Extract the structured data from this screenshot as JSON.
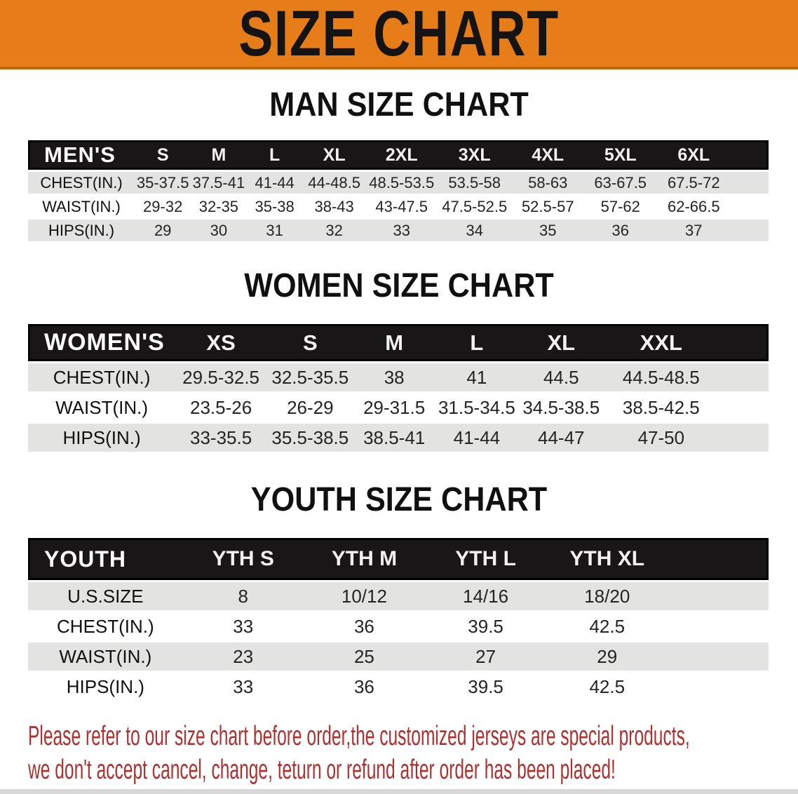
{
  "banner": {
    "title": "SIZE CHART"
  },
  "sections": [
    {
      "id": "men",
      "title": "MAN SIZE CHART",
      "header_label": "MEN'S",
      "columns": [
        "S",
        "M",
        "L",
        "XL",
        "2XL",
        "3XL",
        "4XL",
        "5XL",
        "6XL"
      ],
      "rows": [
        {
          "label": "CHEST(IN.)",
          "values": [
            "35-37.5",
            "37.5-41",
            "41-44",
            "44-48.5",
            "48.5-53.5",
            "53.5-58",
            "58-63",
            "63-67.5",
            "67.5-72"
          ]
        },
        {
          "label": "WAIST(IN.)",
          "values": [
            "29-32",
            "32-35",
            "35-38",
            "38-43",
            "43-47.5",
            "47.5-52.5",
            "52.5-57",
            "57-62",
            "62-66.5"
          ]
        },
        {
          "label": "HIPS(IN.)",
          "values": [
            "29",
            "30",
            "31",
            "32",
            "33",
            "34",
            "35",
            "36",
            "37"
          ]
        }
      ]
    },
    {
      "id": "women",
      "title": "WOMEN SIZE CHART",
      "header_label": "WOMEN'S",
      "columns": [
        "XS",
        "S",
        "M",
        "L",
        "XL",
        "XXL"
      ],
      "rows": [
        {
          "label": "CHEST(IN.)",
          "values": [
            "29.5-32.5",
            "32.5-35.5",
            "38",
            "41",
            "44.5",
            "44.5-48.5"
          ]
        },
        {
          "label": "WAIST(IN.)",
          "values": [
            "23.5-26",
            "26-29",
            "29-31.5",
            "31.5-34.5",
            "34.5-38.5",
            "38.5-42.5"
          ]
        },
        {
          "label": "HIPS(IN.)",
          "values": [
            "33-35.5",
            "35.5-38.5",
            "38.5-41",
            "41-44",
            "44-47",
            "47-50"
          ]
        }
      ]
    },
    {
      "id": "youth",
      "title": "YOUTH SIZE CHART",
      "header_label": "YOUTH",
      "columns": [
        "YTH S",
        "YTH M",
        "YTH L",
        "YTH XL"
      ],
      "rows": [
        {
          "label": "U.S.SIZE",
          "values": [
            "8",
            "10/12",
            "14/16",
            "18/20"
          ]
        },
        {
          "label": "CHEST(IN.)",
          "values": [
            "33",
            "36",
            "39.5",
            "42.5"
          ]
        },
        {
          "label": "WAIST(IN.)",
          "values": [
            "23",
            "25",
            "27",
            "29"
          ]
        },
        {
          "label": "HIPS(IN.)",
          "values": [
            "33",
            "36",
            "39.5",
            "42.5"
          ]
        }
      ]
    }
  ],
  "footer": {
    "line1": "Please refer to our size chart before order,the customized jerseys are special products,",
    "line2": "we don't accept cancel, change, teturn or refund after order has been placed!"
  },
  "colors": {
    "banner_bg": "#E67D18",
    "banner_edge": "#C2670E",
    "header_bar": "#191617",
    "row_gray": "#E3E3E1",
    "footer_red": "#B1302E"
  }
}
